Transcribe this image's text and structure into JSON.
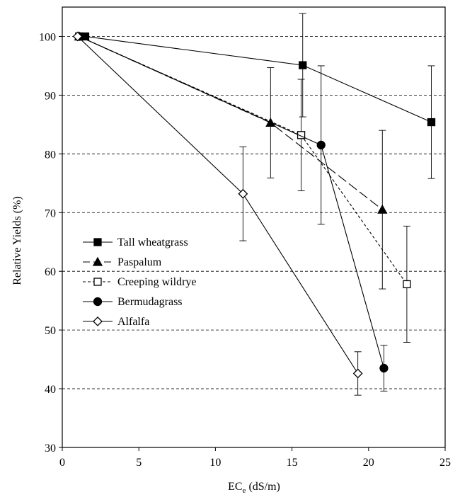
{
  "chart_data": {
    "type": "line",
    "title": "",
    "xlabel": "EC",
    "xlabel_sub": "e",
    "xlabel_unit": " (dS/m)",
    "ylabel": "Relative Yields (%)",
    "xlim": [
      0,
      25
    ],
    "ylim": [
      30,
      105
    ],
    "x_ticks": [
      0,
      5,
      10,
      15,
      20,
      25
    ],
    "x_tick_labels": [
      "0",
      "5",
      "10",
      "15",
      "20",
      "25"
    ],
    "y_ticks": [
      30,
      40,
      50,
      60,
      70,
      80,
      90,
      100
    ],
    "y_tick_labels": [
      "30",
      "40",
      "50",
      "60",
      "70",
      "80",
      "90",
      "100"
    ],
    "grid": "horizontal dashed",
    "legend_position": "left-middle",
    "series": [
      {
        "name": "Tall wheatgrass",
        "marker": "square",
        "marker_fill": "filled",
        "line_style": "solid",
        "x": [
          1.5,
          15.7,
          24.1
        ],
        "y": [
          100,
          95.1,
          85.4
        ],
        "err": [
          0,
          8.8,
          9.6
        ]
      },
      {
        "name": "Paspalum",
        "marker": "triangle",
        "marker_fill": "filled",
        "line_style": "long-dash",
        "x": [
          1.1,
          13.6,
          20.9
        ],
        "y": [
          100,
          85.3,
          70.5
        ],
        "err": [
          0,
          9.4,
          13.5
        ]
      },
      {
        "name": "Creeping wildrye",
        "marker": "square",
        "marker_fill": "open",
        "line_style": "short-dash",
        "x": [
          1.1,
          15.6,
          22.5
        ],
        "y": [
          100,
          83.2,
          57.8
        ],
        "err": [
          0,
          9.5,
          9.9
        ]
      },
      {
        "name": "Bermudagrass",
        "marker": "circle",
        "marker_fill": "filled",
        "line_style": "solid",
        "x": [
          1.1,
          16.9,
          21.0
        ],
        "y": [
          100,
          81.5,
          43.5
        ],
        "err": [
          0,
          13.5,
          3.9
        ]
      },
      {
        "name": "Alfalfa",
        "marker": "diamond",
        "marker_fill": "open",
        "line_style": "solid",
        "x": [
          1.0,
          11.8,
          19.3
        ],
        "y": [
          100,
          73.2,
          42.6
        ],
        "err": [
          0,
          8.0,
          3.7
        ]
      }
    ]
  }
}
